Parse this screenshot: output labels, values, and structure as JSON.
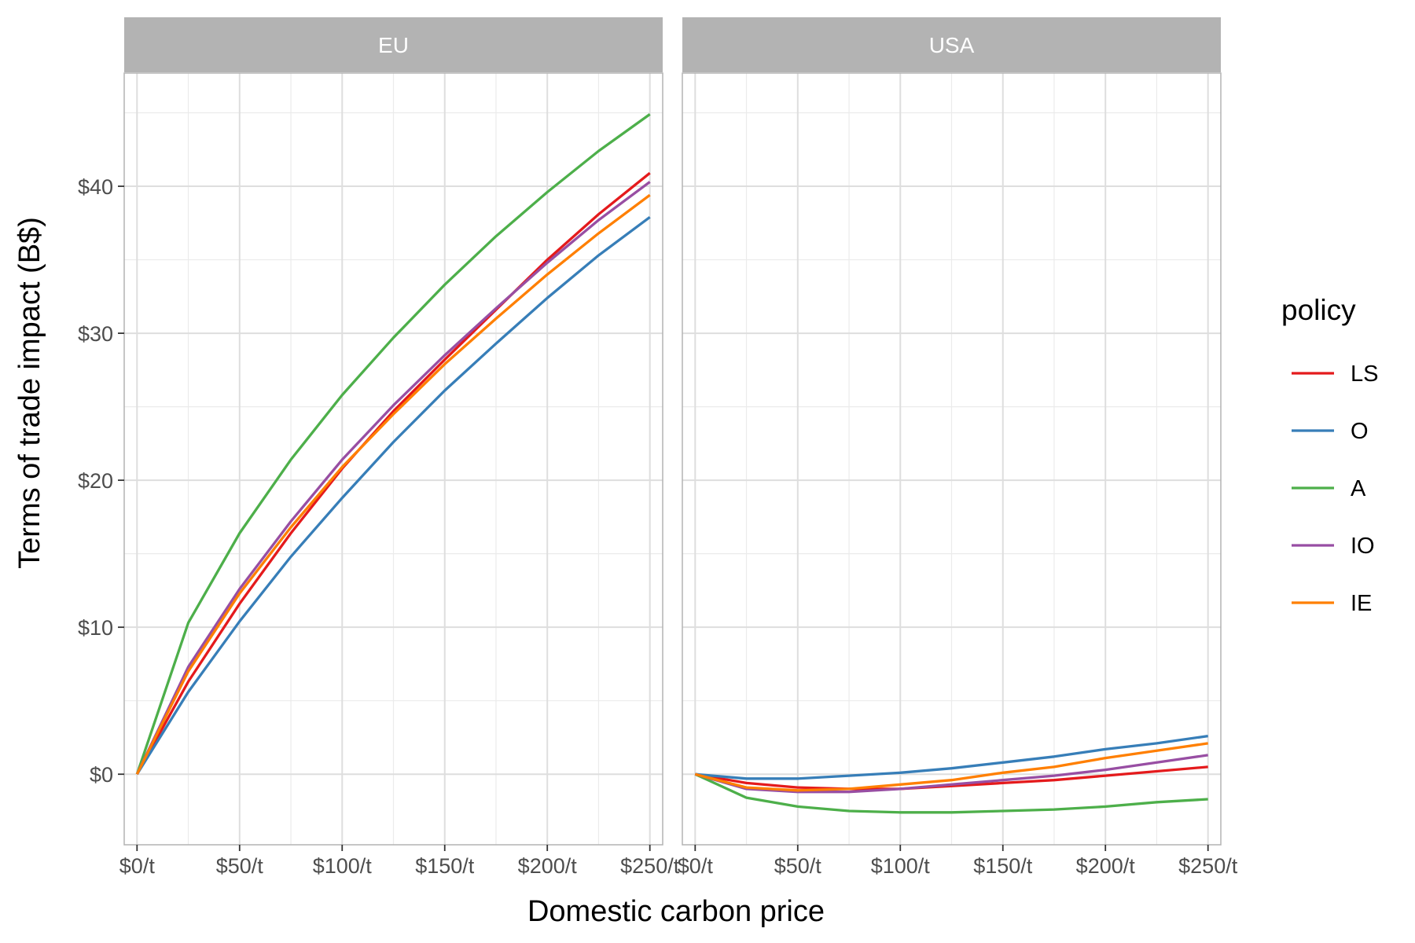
{
  "chart_data": {
    "type": "line",
    "xlabel": "Domestic carbon price",
    "ylabel": "Terms of trade impact (B$)",
    "x": [
      0,
      25,
      50,
      75,
      100,
      125,
      150,
      175,
      200,
      225,
      250
    ],
    "x_ticks": [
      0,
      50,
      100,
      150,
      200,
      250
    ],
    "x_tick_labels": [
      "$0/t",
      "$50/t",
      "$100/t",
      "$150/t",
      "$200/t",
      "$250/t"
    ],
    "xlim": [
      -6.25,
      256.25
    ],
    "y_ticks": [
      0,
      10,
      20,
      30,
      40
    ],
    "y_tick_labels": [
      "$0",
      "$10",
      "$20",
      "$30",
      "$40"
    ],
    "ylim": [
      -4.8,
      47.7
    ],
    "grid": true,
    "legend": {
      "title": "policy",
      "position": "right",
      "entries": [
        "LS",
        "O",
        "A",
        "IO",
        "IE"
      ]
    },
    "series_colors": {
      "LS": "#e41a1c",
      "O": "#377eb8",
      "A": "#4daf4a",
      "IO": "#984ea3",
      "IE": "#ff7f00"
    },
    "strip_color": "#b3b3b3",
    "panels": [
      {
        "label": "EU",
        "series": [
          {
            "name": "LS",
            "values": [
              0,
              6.3,
              11.6,
              16.4,
              20.8,
              24.7,
              28.2,
              31.6,
              35.0,
              38.1,
              40.9
            ]
          },
          {
            "name": "O",
            "values": [
              0,
              5.6,
              10.4,
              14.8,
              18.8,
              22.6,
              26.1,
              29.3,
              32.4,
              35.3,
              37.9
            ]
          },
          {
            "name": "A",
            "values": [
              0,
              10.3,
              16.4,
              21.4,
              25.8,
              29.7,
              33.3,
              36.6,
              39.6,
              42.4,
              44.9
            ]
          },
          {
            "name": "IO",
            "values": [
              0,
              7.3,
              12.6,
              17.2,
              21.4,
              25.1,
              28.5,
              31.7,
              34.8,
              37.7,
              40.3
            ]
          },
          {
            "name": "IE",
            "values": [
              0,
              7.0,
              12.3,
              16.8,
              20.9,
              24.5,
              27.9,
              31.0,
              34.0,
              36.8,
              39.4
            ]
          }
        ]
      },
      {
        "label": "USA",
        "series": [
          {
            "name": "LS",
            "values": [
              0,
              -0.6,
              -0.9,
              -1.0,
              -1.0,
              -0.8,
              -0.6,
              -0.4,
              -0.1,
              0.2,
              0.5
            ]
          },
          {
            "name": "O",
            "values": [
              0,
              -0.3,
              -0.3,
              -0.1,
              0.1,
              0.4,
              0.8,
              1.2,
              1.7,
              2.1,
              2.6
            ]
          },
          {
            "name": "A",
            "values": [
              0,
              -1.6,
              -2.2,
              -2.5,
              -2.6,
              -2.6,
              -2.5,
              -2.4,
              -2.2,
              -1.9,
              -1.7
            ]
          },
          {
            "name": "IO",
            "values": [
              0,
              -1.0,
              -1.2,
              -1.2,
              -1.0,
              -0.7,
              -0.4,
              -0.1,
              0.3,
              0.8,
              1.3
            ]
          },
          {
            "name": "IE",
            "values": [
              0,
              -0.9,
              -1.1,
              -1.0,
              -0.7,
              -0.4,
              0.1,
              0.5,
              1.1,
              1.6,
              2.1
            ]
          }
        ]
      }
    ]
  }
}
